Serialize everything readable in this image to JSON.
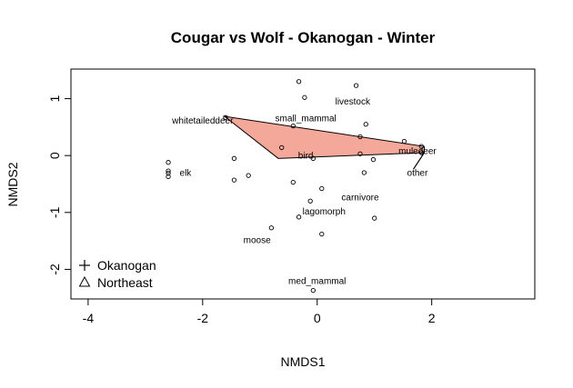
{
  "chart_data": {
    "type": "scatter",
    "title": "Cougar vs Wolf - Okanogan - Winter",
    "xlabel": "NMDS1",
    "ylabel": "NMDS2",
    "xlim": [
      -4.3,
      3.8
    ],
    "ylim": [
      -2.52,
      1.52
    ],
    "x_ticks": [
      -4,
      -2,
      0,
      2
    ],
    "y_ticks": [
      -2,
      -1,
      0,
      1
    ],
    "points": [
      {
        "x": -2.6,
        "y": -0.12
      },
      {
        "x": -2.6,
        "y": -0.27
      },
      {
        "x": -2.6,
        "y": -0.31
      },
      {
        "x": -2.6,
        "y": -0.37
      },
      {
        "x": -1.6,
        "y": 0.67
      },
      {
        "x": -1.45,
        "y": -0.05
      },
      {
        "x": -1.45,
        "y": -0.43
      },
      {
        "x": -1.2,
        "y": -0.35
      },
      {
        "x": -0.8,
        "y": -1.27
      },
      {
        "x": -0.62,
        "y": 0.14
      },
      {
        "x": -0.42,
        "y": 0.52
      },
      {
        "x": -0.42,
        "y": -0.47
      },
      {
        "x": -0.32,
        "y": 1.3
      },
      {
        "x": -0.32,
        "y": -1.08
      },
      {
        "x": -0.22,
        "y": 1.02
      },
      {
        "x": -0.12,
        "y": -0.8
      },
      {
        "x": -0.07,
        "y": -0.05
      },
      {
        "x": 0.08,
        "y": -0.58
      },
      {
        "x": 0.08,
        "y": -1.38
      },
      {
        "x": -0.07,
        "y": -2.37
      },
      {
        "x": 0.68,
        "y": 1.23
      },
      {
        "x": 0.75,
        "y": 0.33
      },
      {
        "x": 0.85,
        "y": 0.55
      },
      {
        "x": 0.75,
        "y": 0.03
      },
      {
        "x": 0.82,
        "y": -0.3
      },
      {
        "x": 0.98,
        "y": -0.07
      },
      {
        "x": 1.0,
        "y": -1.1
      },
      {
        "x": 1.52,
        "y": 0.25
      },
      {
        "x": 1.82,
        "y": 0.16
      },
      {
        "x": 1.82,
        "y": 0.05
      }
    ],
    "labels": [
      {
        "text": "livestock",
        "x": 0.62,
        "y": 0.95
      },
      {
        "text": "small_mammal",
        "x": -0.2,
        "y": 0.66
      },
      {
        "text": "whitetaileddeer",
        "x": -2.0,
        "y": 0.62
      },
      {
        "text": "bird",
        "x": -0.2,
        "y": 0.0
      },
      {
        "text": "muledeer",
        "x": 1.75,
        "y": 0.08
      },
      {
        "text": "other",
        "x": 1.75,
        "y": -0.3
      },
      {
        "text": "elk",
        "x": -2.3,
        "y": -0.3
      },
      {
        "text": "carnivore",
        "x": 0.75,
        "y": -0.73
      },
      {
        "text": "lagomorph",
        "x": 0.12,
        "y": -0.98
      },
      {
        "text": "moose",
        "x": -1.05,
        "y": -1.48
      },
      {
        "text": "med_mammal",
        "x": 0.0,
        "y": -2.2
      }
    ],
    "hull": [
      [
        -1.62,
        0.69
      ],
      [
        1.87,
        0.16
      ],
      [
        1.87,
        0.05
      ],
      [
        -0.68,
        -0.05
      ]
    ],
    "hull_color": "#f4a89a",
    "extra_lines": [
      [
        [
          1.87,
          0.05
        ],
        [
          1.68,
          -0.24
        ]
      ]
    ],
    "legend": {
      "position": "bottom-left",
      "entries": [
        {
          "symbol": "plus",
          "label": "Okanogan"
        },
        {
          "symbol": "triangle",
          "label": "Northeast"
        }
      ]
    }
  }
}
